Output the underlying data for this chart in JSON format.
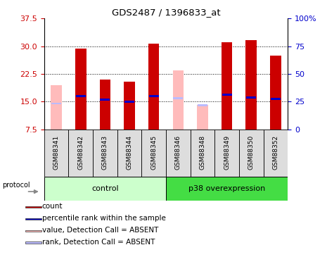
{
  "title": "GDS2487 / 1396833_at",
  "samples": [
    "GSM88341",
    "GSM88342",
    "GSM88343",
    "GSM88344",
    "GSM88345",
    "GSM88346",
    "GSM88348",
    "GSM88349",
    "GSM88350",
    "GSM88352"
  ],
  "groups": [
    {
      "label": "control",
      "color_light": "#ccffcc",
      "color_dark": "#44cc44",
      "count": 5
    },
    {
      "label": "p38 overexpression",
      "color_light": "#44dd44",
      "color_dark": "#44dd44",
      "count": 5
    }
  ],
  "red_values": [
    null,
    29.3,
    21.0,
    20.5,
    30.6,
    null,
    null,
    31.1,
    31.6,
    27.4
  ],
  "pink_values": [
    19.5,
    null,
    null,
    null,
    null,
    23.5,
    14.2,
    null,
    null,
    null
  ],
  "blue_values": [
    null,
    16.5,
    15.5,
    15.0,
    16.5,
    null,
    null,
    16.8,
    16.2,
    15.8
  ],
  "lightblue_values": [
    14.5,
    null,
    null,
    null,
    null,
    16.0,
    14.0,
    null,
    null,
    null
  ],
  "ylim_left": [
    7.5,
    37.5
  ],
  "ylim_right": [
    0,
    100
  ],
  "yticks_left": [
    7.5,
    15.0,
    22.5,
    30.0,
    37.5
  ],
  "yticks_right": [
    0,
    25,
    50,
    75,
    100
  ],
  "left_color": "#cc0000",
  "right_color": "#0000cc",
  "bar_width": 0.45,
  "legend_items": [
    {
      "color": "#cc0000",
      "label": "count"
    },
    {
      "color": "#0000cc",
      "label": "percentile rank within the sample"
    },
    {
      "color": "#ffbbbb",
      "label": "value, Detection Call = ABSENT"
    },
    {
      "color": "#bbbbff",
      "label": "rank, Detection Call = ABSENT"
    }
  ]
}
